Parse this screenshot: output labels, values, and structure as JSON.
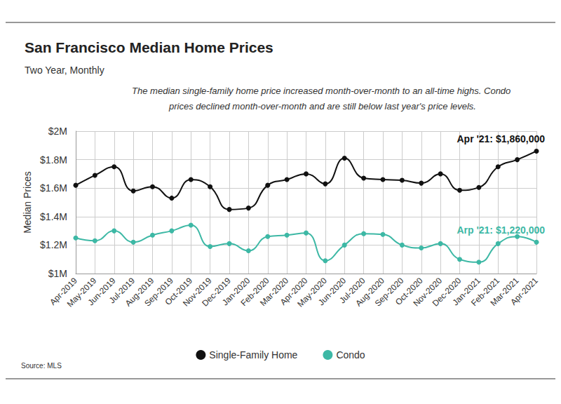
{
  "chart_data": {
    "type": "line",
    "title": "San Francisco Median Home Prices",
    "subtitle": "Two Year, Monthly",
    "description": "The median single-family home price increased month-over-month to an all-time highs. Condo prices declined month-over-month and are still below last year's price levels.",
    "source": "Source: MLS",
    "y_label": "Median Prices",
    "categories": [
      "Apr-2019",
      "May-2019",
      "Jun-2019",
      "Jul-2019",
      "Aug-2019",
      "Sep-2019",
      "Oct-2019",
      "Nov-2019",
      "Dec-2019",
      "Jan-2020",
      "Feb-2020",
      "Mar-2020",
      "Apr-2020",
      "May-2020",
      "Jun-2020",
      "Jul-2020",
      "Aug-2020",
      "Sep-2020",
      "Oct-2020",
      "Nov-2020",
      "Dec-2020",
      "Jan-2021",
      "Feb-2021",
      "Mar-2021",
      "Apr-2021"
    ],
    "series": [
      {
        "name": "Single-Family Home",
        "color": "#111111",
        "marker": "circle",
        "line_style": "solid",
        "values": [
          1620000,
          1690000,
          1750000,
          1580000,
          1610000,
          1530000,
          1660000,
          1610000,
          1450000,
          1460000,
          1620000,
          1660000,
          1700000,
          1630000,
          1810000,
          1670000,
          1660000,
          1655000,
          1635000,
          1700000,
          1585000,
          1605000,
          1750000,
          1800000,
          1860000
        ]
      },
      {
        "name": "Condo",
        "color": "#3db8a5",
        "marker": "circle",
        "line_style": "solid",
        "values": [
          1250000,
          1230000,
          1300000,
          1220000,
          1270000,
          1300000,
          1340000,
          1190000,
          1210000,
          1160000,
          1260000,
          1270000,
          1285000,
          1090000,
          1200000,
          1280000,
          1275000,
          1200000,
          1180000,
          1210000,
          1100000,
          1080000,
          1210000,
          1260000,
          1220000
        ]
      }
    ],
    "annotations": [
      {
        "text": "Apr '21: $1,860,000",
        "series": "Single-Family Home",
        "category": "Apr-2021"
      },
      {
        "text": "Arp '21: $1,220,000",
        "series": "Condo",
        "category": "Apr-2021"
      }
    ],
    "ylim": [
      1000000,
      2000000
    ],
    "yticks": [
      {
        "value": 1000000,
        "label": "$1M"
      },
      {
        "value": 1200000,
        "label": "$1.2M"
      },
      {
        "value": 1400000,
        "label": "$1.4M"
      },
      {
        "value": 1600000,
        "label": "$1.6M"
      },
      {
        "value": 1800000,
        "label": "$1.8M"
      },
      {
        "value": 2000000,
        "label": "$2M"
      }
    ],
    "grid": true,
    "legend": "bottom"
  }
}
